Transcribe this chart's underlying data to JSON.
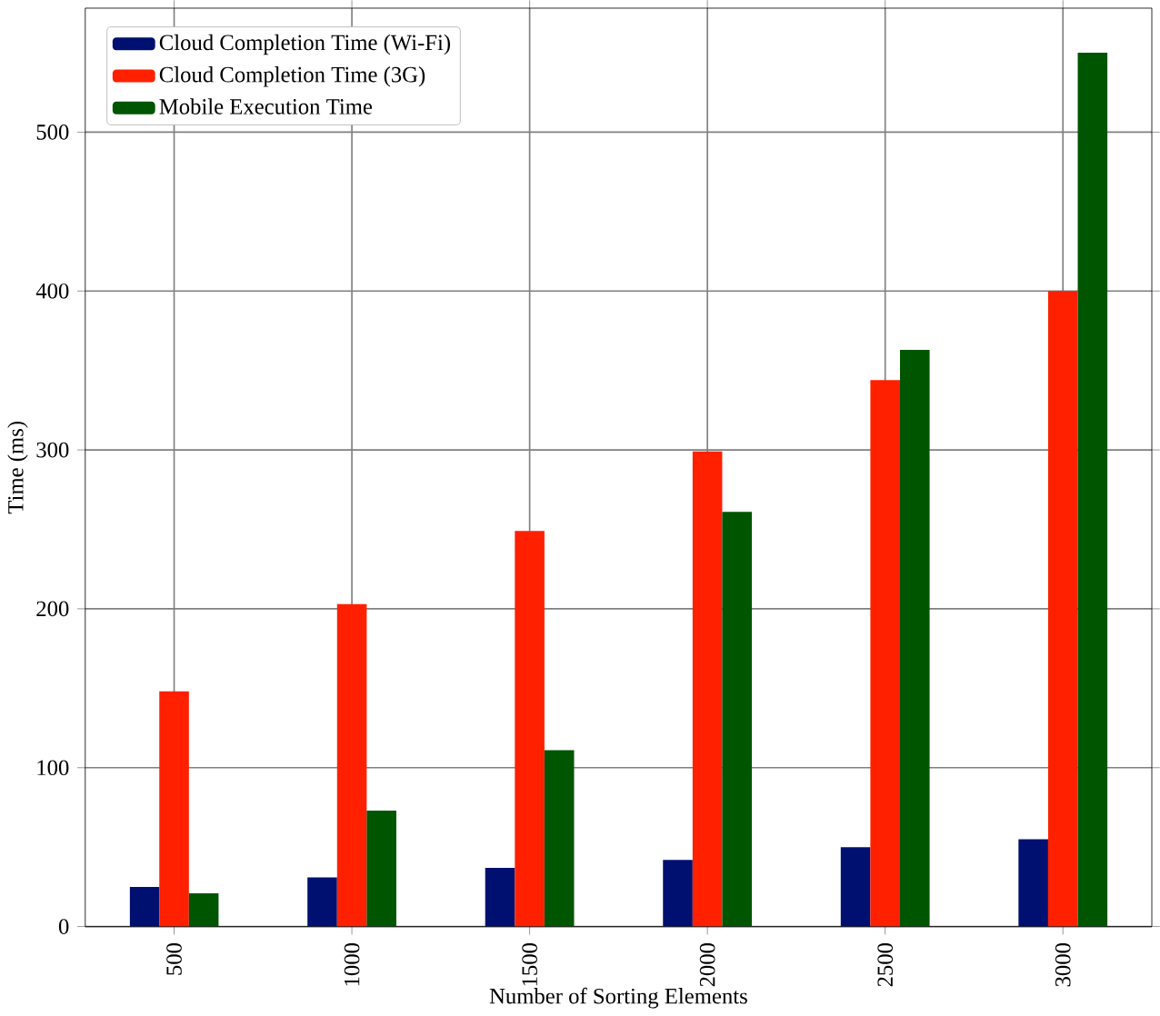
{
  "chart_data": {
    "type": "bar",
    "xlabel": "Number of Sorting Elements",
    "ylabel": "Time (ms)",
    "categories": [
      "500",
      "1000",
      "1500",
      "2000",
      "2500",
      "3000"
    ],
    "series": [
      {
        "name": "Cloud Completion Time (Wi-Fi)",
        "color": "#001070",
        "values": [
          25,
          31,
          37,
          42,
          50,
          55
        ]
      },
      {
        "name": "Cloud Completion Time (3G)",
        "color": "#ff2000",
        "values": [
          148,
          203,
          249,
          299,
          344,
          400
        ]
      },
      {
        "name": "Mobile Execution Time",
        "color": "#005500",
        "values": [
          21,
          73,
          111,
          261,
          363,
          550
        ]
      }
    ],
    "ylim": [
      0,
      578
    ],
    "yticks": [
      0,
      100,
      200,
      300,
      400,
      500
    ],
    "grid": true,
    "legend": "top left"
  }
}
